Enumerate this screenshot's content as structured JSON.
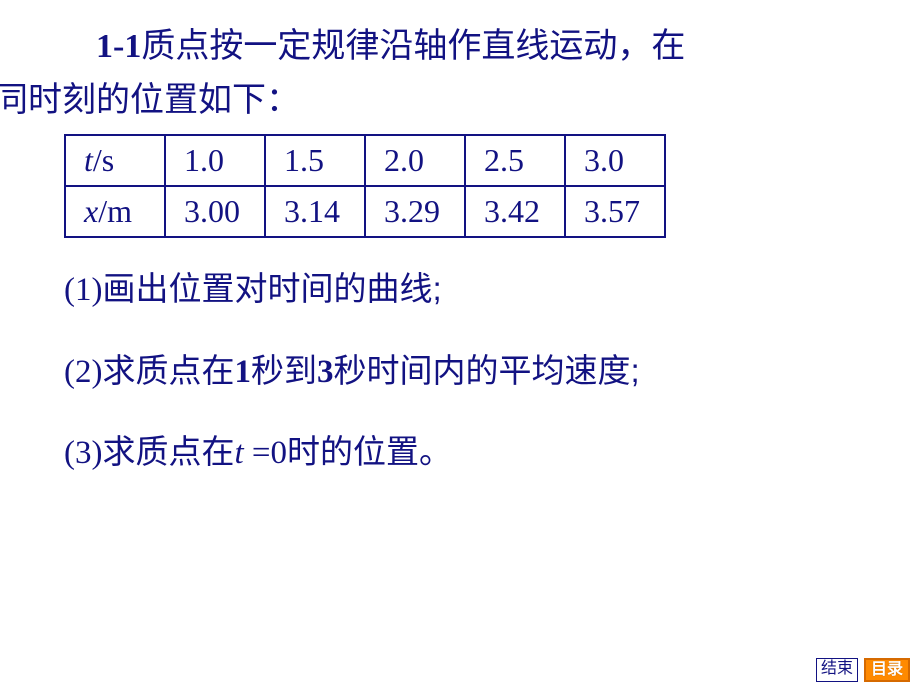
{
  "problem": {
    "number": "1-1",
    "text_line1": "质点按一定规律沿轴作直线运动，在",
    "text_line2": "不同时刻的位置如下："
  },
  "table": {
    "row_time_label_var": "t",
    "row_time_label_unit": "/s",
    "row_pos_label_var": "x",
    "row_pos_label_unit": "/m",
    "t": [
      "1.0",
      "1.5",
      "2.0",
      "2.5",
      "3.0"
    ],
    "x": [
      "3.00",
      "3.14",
      "3.29",
      "3.42",
      "3.57"
    ],
    "border_color": "#121282",
    "text_color": "#121282",
    "fontsize": 32
  },
  "questions": {
    "q1_num": "(1)",
    "q1_text": "画出位置对时间的曲线;",
    "q2_num": "(2)",
    "q2_text_a": "求质点在",
    "q2_b1": "1",
    "q2_text_b": "秒到",
    "q2_b2": "3",
    "q2_text_c": "秒时间内的平均速度;",
    "q3_num": "(3)",
    "q3_text_a": "求质点在",
    "q3_var": "t ",
    "q3_eq": "=",
    "q3_val": "0",
    "q3_text_b": "时的位置。"
  },
  "footer": {
    "end": "结束",
    "toc": "目录"
  },
  "colors": {
    "primary": "#121282",
    "background": "#ffffff",
    "toc_bg": "#ff8a00",
    "toc_border": "#d66a00"
  }
}
